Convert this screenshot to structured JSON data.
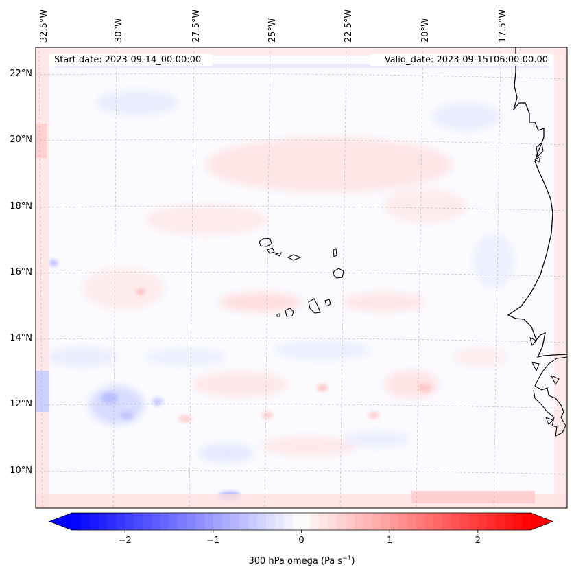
{
  "header": {
    "start_date": "Start date: 2023-09-14_00:00:00",
    "valid_date": "Valid_date: 2023-09-15T06:00:00.00"
  },
  "lon_labels": [
    "32.5°W",
    "30°W",
    "27.5°W",
    "25°W",
    "22.5°W",
    "20°W",
    "17.5°W"
  ],
  "lat_labels": [
    "22°N",
    "20°N",
    "18°N",
    "16°N",
    "14°N",
    "12°N",
    "10°N"
  ],
  "colorbar": {
    "ticks": [
      "−2",
      "−1",
      "0",
      "1",
      "2"
    ],
    "tick_values": [
      -2,
      -1,
      0,
      1,
      2
    ],
    "range": [
      -2.6,
      2.6
    ],
    "levels": 52,
    "label_prefix": "300 hPa omega (Pa s",
    "label_exp": "−1",
    "label_suffix": ")",
    "cmap": "bwr",
    "colors": {
      "neg": "#0000ff",
      "zero": "#ffffff",
      "pos": "#ff0000"
    }
  },
  "map": {
    "lon_range": [
      -33,
      -14.5
    ],
    "lat_range": [
      9,
      22.5
    ],
    "field_bg": "#fbfbff",
    "coastline_color": "#000000",
    "grid_color": "#b0b0b0"
  }
}
